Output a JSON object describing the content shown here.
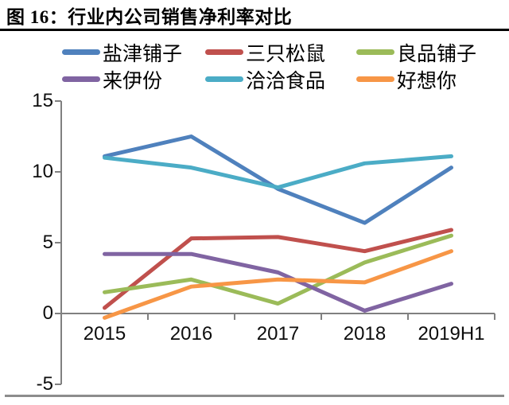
{
  "figure": {
    "title": "图 16：行业内公司销售净利率对比"
  },
  "colors": {
    "background": "#ffffff",
    "title_text": "#000000",
    "title_rule": "#000000",
    "axis": "#808080",
    "tick_label": "#0d0d0d",
    "bottom_rule": "#8c8c8c"
  },
  "chart_data": {
    "type": "line",
    "title": "图 16：行业内公司销售净利率对比",
    "xlabel": "",
    "ylabel": "",
    "categories": [
      "2015",
      "2016",
      "2017",
      "2018",
      "2019H1"
    ],
    "series": [
      {
        "name": "盐津铺子",
        "color": "#4F81BD",
        "values": [
          11.1,
          12.5,
          8.8,
          6.4,
          10.3
        ]
      },
      {
        "name": "三只松鼠",
        "color": "#C0504D",
        "values": [
          0.4,
          5.3,
          5.4,
          4.4,
          5.9
        ]
      },
      {
        "name": "良品铺子",
        "color": "#9BBB59",
        "values": [
          1.5,
          2.4,
          0.7,
          3.6,
          5.5
        ]
      },
      {
        "name": "来伊份",
        "color": "#8064A2",
        "values": [
          4.2,
          4.2,
          2.9,
          0.2,
          2.1
        ]
      },
      {
        "name": "洽洽食品",
        "color": "#4BACC6",
        "values": [
          11.0,
          10.3,
          8.9,
          10.6,
          11.1
        ]
      },
      {
        "name": "好想你",
        "color": "#F79646",
        "values": [
          -0.3,
          1.9,
          2.4,
          2.2,
          4.4
        ]
      }
    ],
    "ylim": [
      -5,
      15
    ],
    "yticks": [
      15,
      10,
      5,
      0,
      -5
    ],
    "grid": false,
    "legend_position": "top"
  }
}
